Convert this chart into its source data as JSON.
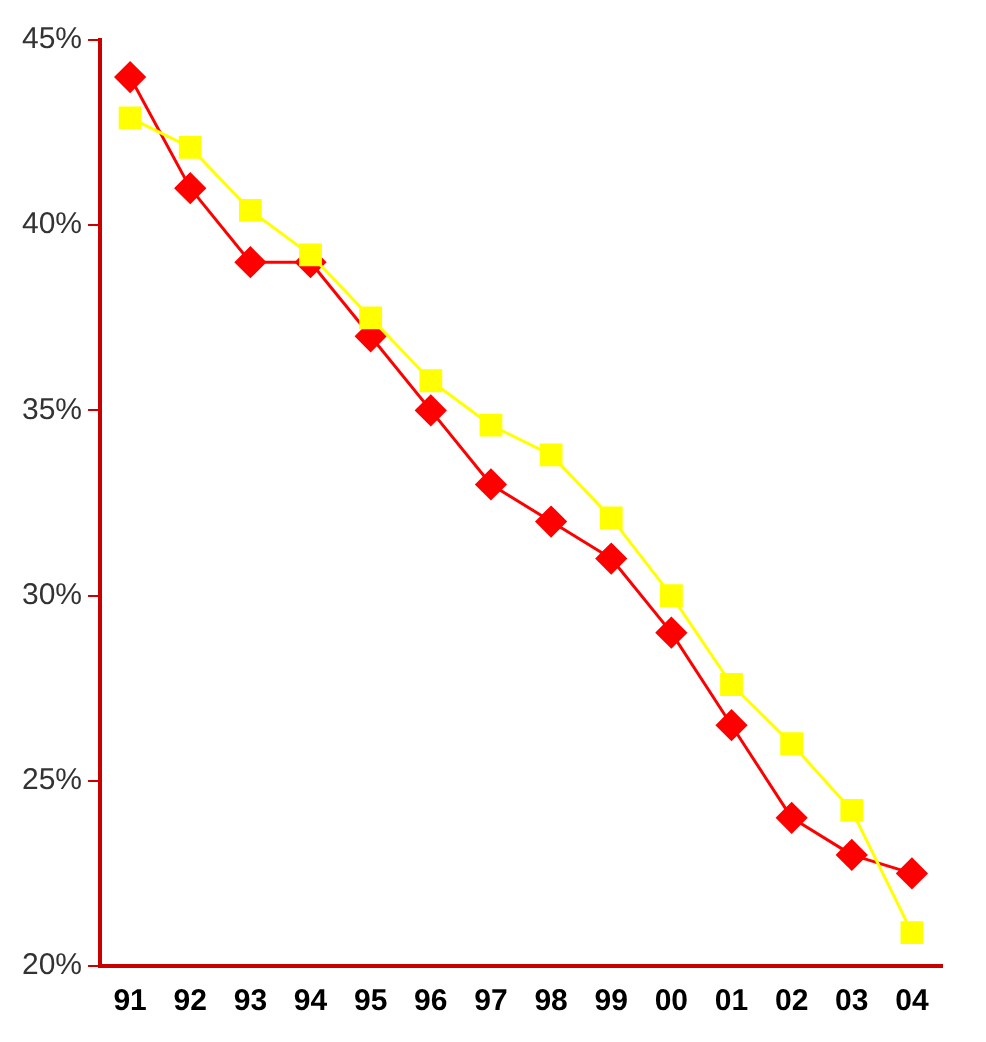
{
  "chart_data": {
    "type": "line",
    "categories": [
      "91",
      "92",
      "93",
      "94",
      "95",
      "96",
      "97",
      "98",
      "99",
      "00",
      "01",
      "02",
      "03",
      "04"
    ],
    "series": [
      {
        "color": "#ffff00",
        "marker": "square",
        "values": [
          42.9,
          42.1,
          40.4,
          39.2,
          37.5,
          35.8,
          34.6,
          33.8,
          32.1,
          30.0,
          27.6,
          26.0,
          24.2,
          20.9
        ]
      },
      {
        "color": "#ff0000",
        "marker": "diamond",
        "values": [
          44,
          41,
          39,
          39,
          37,
          35,
          33,
          32,
          31,
          29,
          26.5,
          24,
          23,
          22.5
        ]
      }
    ],
    "ylim": [
      20,
      45
    ],
    "yticks": [
      {
        "value": 20,
        "label": "20%"
      },
      {
        "value": 25,
        "label": "25%"
      },
      {
        "value": 30,
        "label": "30%"
      },
      {
        "value": 35,
        "label": "35%"
      },
      {
        "value": 40,
        "label": "40%"
      },
      {
        "value": 45,
        "label": "45%"
      }
    ],
    "grid": false,
    "legend": false
  }
}
